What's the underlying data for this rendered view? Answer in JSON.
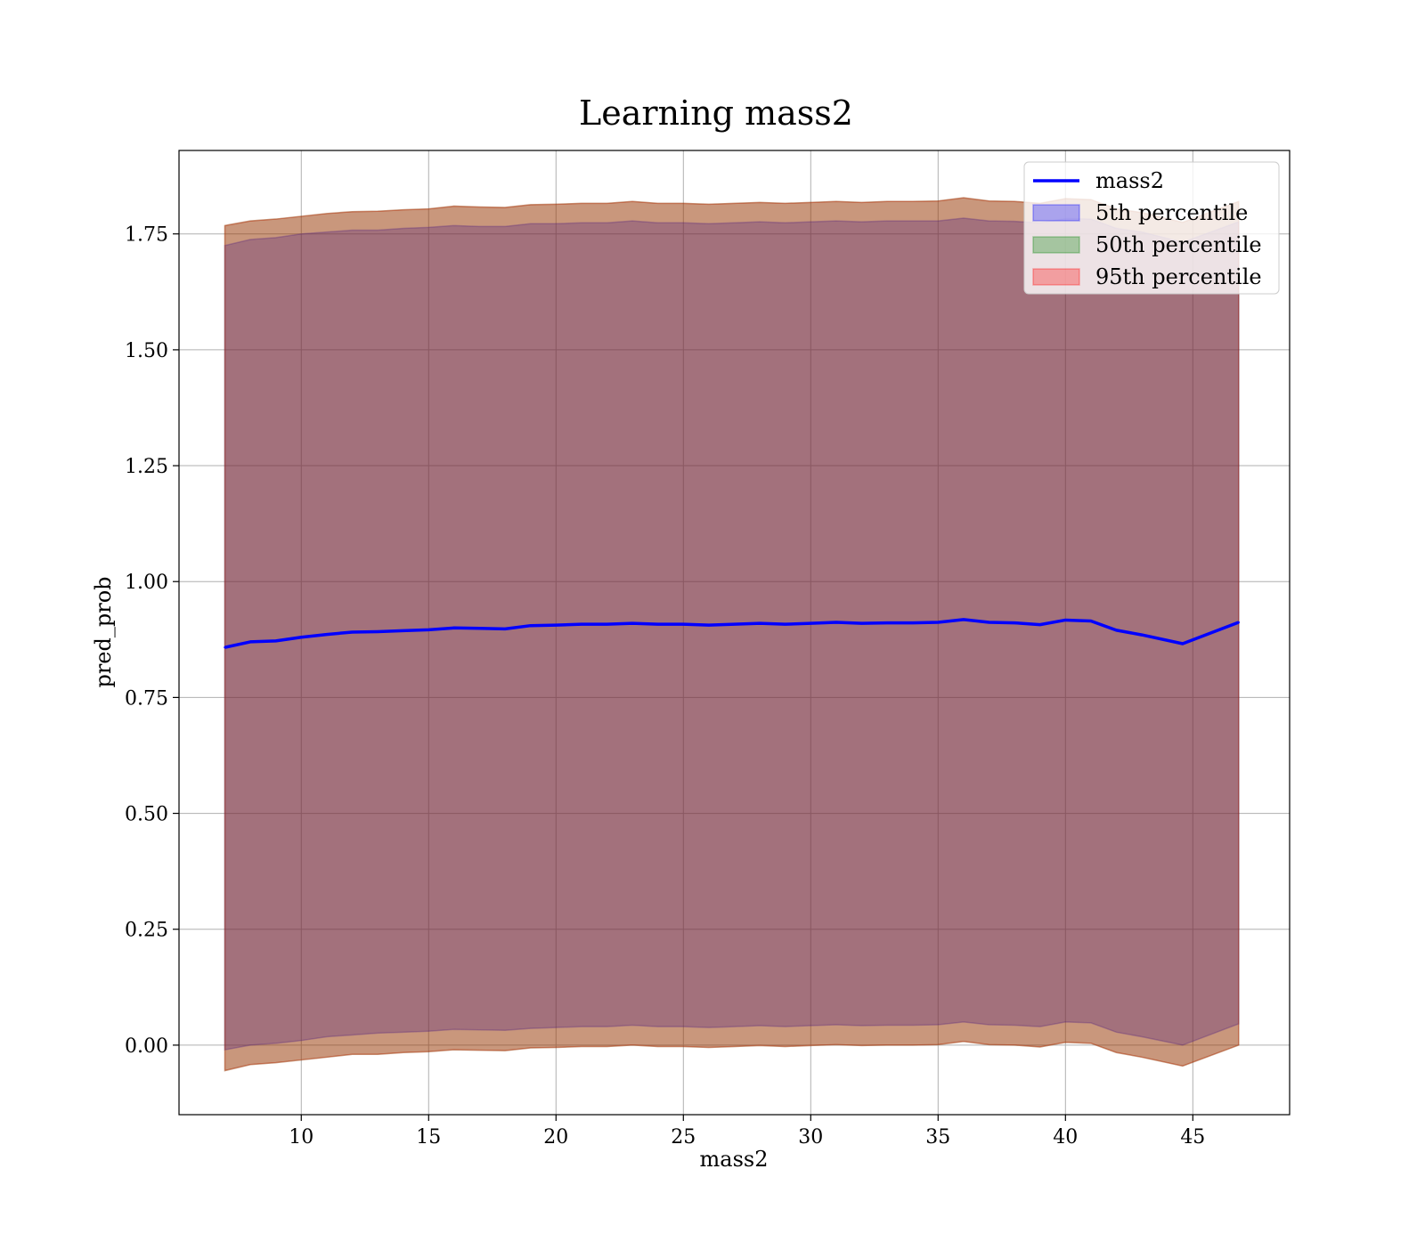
{
  "chart_data": {
    "type": "line",
    "title": "Learning mass2",
    "xlabel": "mass2",
    "ylabel": "pred_prob",
    "xlim": [
      5.2,
      48.8
    ],
    "ylim": [
      -0.15,
      1.93
    ],
    "x_ticks": [
      10,
      15,
      20,
      25,
      30,
      35,
      40,
      45
    ],
    "x_tick_labels": [
      "10",
      "15",
      "20",
      "25",
      "30",
      "35",
      "40",
      "45"
    ],
    "y_ticks": [
      0.0,
      0.25,
      0.5,
      0.75,
      1.0,
      1.25,
      1.5,
      1.75
    ],
    "y_tick_labels": [
      "0.00",
      "0.25",
      "0.50",
      "0.75",
      "1.00",
      "1.25",
      "1.50",
      "1.75"
    ],
    "grid": true,
    "legend_position": "top-right",
    "x": [
      7,
      8,
      9,
      10,
      11,
      12,
      13,
      14,
      15,
      16,
      17,
      18,
      19,
      20,
      21,
      22,
      23,
      24,
      25,
      26,
      27,
      28,
      29,
      30,
      31,
      32,
      33,
      34,
      35,
      36,
      37,
      38,
      39,
      40,
      41,
      42,
      43,
      44.6,
      46.8
    ],
    "series": [
      {
        "name": "mass2",
        "kind": "line",
        "color": "#0000ff",
        "values": [
          0.858,
          0.87,
          0.872,
          0.88,
          0.886,
          0.891,
          0.892,
          0.894,
          0.896,
          0.9,
          0.899,
          0.898,
          0.905,
          0.906,
          0.908,
          0.908,
          0.91,
          0.908,
          0.908,
          0.906,
          0.908,
          0.91,
          0.908,
          0.91,
          0.912,
          0.91,
          0.911,
          0.911,
          0.912,
          0.918,
          0.912,
          0.911,
          0.907,
          0.917,
          0.915,
          0.895,
          0.885,
          0.866,
          0.912
        ]
      },
      {
        "name": "5th percentile",
        "kind": "band",
        "color": "#0000ff",
        "lower": [
          -0.01,
          0.0,
          0.004,
          0.01,
          0.018,
          0.022,
          0.026,
          0.028,
          0.03,
          0.034,
          0.033,
          0.032,
          0.036,
          0.038,
          0.04,
          0.04,
          0.043,
          0.04,
          0.04,
          0.038,
          0.04,
          0.042,
          0.04,
          0.042,
          0.044,
          0.042,
          0.043,
          0.043,
          0.044,
          0.05,
          0.044,
          0.043,
          0.04,
          0.05,
          0.048,
          0.028,
          0.018,
          0.0,
          0.046
        ],
        "upper": [
          1.725,
          1.738,
          1.742,
          1.75,
          1.754,
          1.758,
          1.758,
          1.762,
          1.764,
          1.768,
          1.766,
          1.766,
          1.772,
          1.772,
          1.774,
          1.774,
          1.778,
          1.774,
          1.774,
          1.772,
          1.774,
          1.776,
          1.774,
          1.776,
          1.778,
          1.776,
          1.778,
          1.778,
          1.778,
          1.784,
          1.778,
          1.777,
          1.774,
          1.783,
          1.782,
          1.762,
          1.754,
          1.732,
          1.776
        ]
      },
      {
        "name": "50th percentile",
        "kind": "band",
        "color": "#008000",
        "lower": [
          -0.055,
          -0.042,
          -0.038,
          -0.032,
          -0.026,
          -0.02,
          -0.02,
          -0.016,
          -0.014,
          -0.01,
          -0.011,
          -0.012,
          -0.006,
          -0.005,
          -0.003,
          -0.003,
          0.0,
          -0.003,
          -0.003,
          -0.005,
          -0.003,
          -0.001,
          -0.003,
          -0.001,
          0.001,
          -0.001,
          0.0,
          0.0,
          0.001,
          0.008,
          0.001,
          0.0,
          -0.004,
          0.006,
          0.004,
          -0.016,
          -0.026,
          -0.045,
          0.0
        ],
        "upper": [
          1.768,
          1.778,
          1.782,
          1.788,
          1.794,
          1.798,
          1.799,
          1.802,
          1.804,
          1.81,
          1.808,
          1.807,
          1.813,
          1.814,
          1.816,
          1.816,
          1.82,
          1.816,
          1.816,
          1.814,
          1.816,
          1.818,
          1.816,
          1.818,
          1.82,
          1.818,
          1.82,
          1.82,
          1.821,
          1.828,
          1.821,
          1.82,
          1.816,
          1.826,
          1.824,
          1.804,
          1.796,
          1.775,
          1.82
        ]
      },
      {
        "name": "95th percentile",
        "kind": "band",
        "color": "#ff0000",
        "lower": [
          -0.055,
          -0.042,
          -0.038,
          -0.032,
          -0.026,
          -0.02,
          -0.02,
          -0.016,
          -0.014,
          -0.01,
          -0.011,
          -0.012,
          -0.006,
          -0.005,
          -0.003,
          -0.003,
          0.0,
          -0.003,
          -0.003,
          -0.005,
          -0.003,
          -0.001,
          -0.003,
          -0.001,
          0.001,
          -0.001,
          0.0,
          0.0,
          0.001,
          0.008,
          0.001,
          0.0,
          -0.004,
          0.006,
          0.004,
          -0.016,
          -0.026,
          -0.045,
          0.0
        ],
        "upper": [
          1.768,
          1.778,
          1.782,
          1.788,
          1.794,
          1.798,
          1.799,
          1.802,
          1.804,
          1.81,
          1.808,
          1.807,
          1.813,
          1.814,
          1.816,
          1.816,
          1.82,
          1.816,
          1.816,
          1.814,
          1.816,
          1.818,
          1.816,
          1.818,
          1.82,
          1.818,
          1.82,
          1.82,
          1.821,
          1.828,
          1.821,
          1.82,
          1.816,
          1.826,
          1.824,
          1.804,
          1.796,
          1.775,
          1.82
        ]
      }
    ]
  }
}
